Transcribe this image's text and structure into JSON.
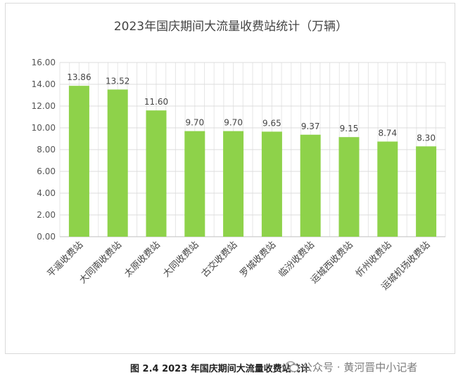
{
  "chart_data": {
    "type": "bar",
    "title": "2023年国庆期间大流量收费站统计（万辆）",
    "categories": [
      "平遥收费站",
      "大同南收费站",
      "太原收费站",
      "大同收费站",
      "古交收费站",
      "罗城收费站",
      "临汾收费站",
      "运城西收费站",
      "忻州收费站",
      "运城机场收费站"
    ],
    "values": [
      13.86,
      13.52,
      11.6,
      9.7,
      9.7,
      9.65,
      9.37,
      9.15,
      8.74,
      8.3
    ],
    "value_labels": [
      "13.86",
      "13.52",
      "11.60",
      "9.70",
      "9.70",
      "9.65",
      "9.37",
      "9.15",
      "8.74",
      "8.30"
    ],
    "yticks": [
      "0.00",
      "2.00",
      "4.00",
      "6.00",
      "8.00",
      "10.00",
      "12.00",
      "14.00",
      "16.00"
    ],
    "ylim": [
      0,
      16
    ],
    "grid": true,
    "bar_color": "#8ed24a"
  },
  "caption": "图 2.4   2023 年国庆期间大流量收费站统计",
  "watermark": "公众号 · 黄河晋中小记者"
}
